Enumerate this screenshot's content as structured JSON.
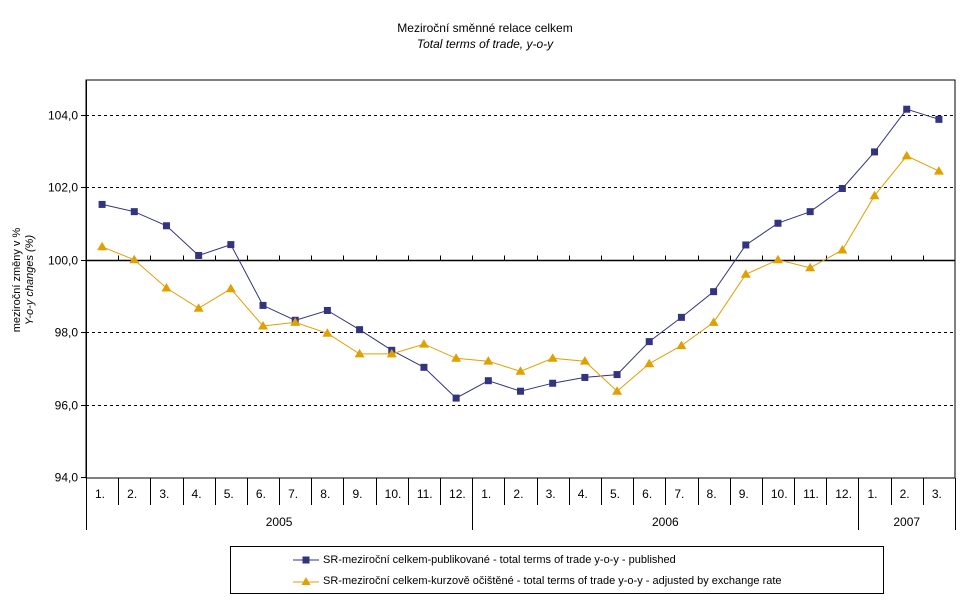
{
  "chart_data": {
    "type": "line",
    "title": "Meziroční směnné relace celkem",
    "subtitle": "Total terms of trade, y-o-y",
    "ylabel": "meziroční změny v %",
    "ylabel2": "Y-o-y changes (%)",
    "xlabel": "",
    "ylim": [
      94.0,
      104.0
    ],
    "yticks": [
      "94,0",
      "96,0",
      "98,0",
      "100,0",
      "102,0",
      "104,0"
    ],
    "ytick_values": [
      94,
      96,
      98,
      100,
      102,
      104
    ],
    "x_axis_crosses_at": 100,
    "grid": "horizontal dashed",
    "categories": [
      "1.",
      "2.",
      "3.",
      "4.",
      "5.",
      "6.",
      "7.",
      "8.",
      "9.",
      "10.",
      "11.",
      "12.",
      "1.",
      "2.",
      "3.",
      "4.",
      "5.",
      "6.",
      "7.",
      "8.",
      "9.",
      "10.",
      "11.",
      "12.",
      "1.",
      "2.",
      "3."
    ],
    "groups": [
      {
        "label": "2005",
        "count": 12
      },
      {
        "label": "2006",
        "count": 12
      },
      {
        "label": "2007",
        "count": 3
      }
    ],
    "series": [
      {
        "name": "SR-meziroční celkem-publikované - total terms of trade y-o-y - published",
        "color": "#333380",
        "marker": "square",
        "values": [
          101.53,
          101.33,
          100.94,
          100.12,
          100.42,
          98.74,
          98.33,
          98.6,
          98.07,
          97.5,
          97.03,
          96.18,
          96.66,
          96.37,
          96.59,
          96.75,
          96.83,
          97.74,
          98.41,
          99.12,
          100.41,
          101.01,
          101.33,
          101.97,
          102.98,
          104.16,
          103.88
        ]
      },
      {
        "name": "SR-meziroční celkem-kurzově očištěné - total terms of trade y-o-y - adjusted by exchange rate",
        "color": "#E0A000",
        "marker": "triangle",
        "values": [
          100.36,
          100.0,
          99.22,
          98.66,
          99.2,
          98.17,
          98.27,
          97.97,
          97.4,
          97.4,
          97.67,
          97.28,
          97.2,
          96.92,
          97.28,
          97.2,
          96.37,
          97.13,
          97.63,
          98.27,
          99.6,
          100.0,
          99.78,
          100.27,
          101.77,
          102.87,
          102.45
        ]
      }
    ],
    "legend": "bottom"
  }
}
